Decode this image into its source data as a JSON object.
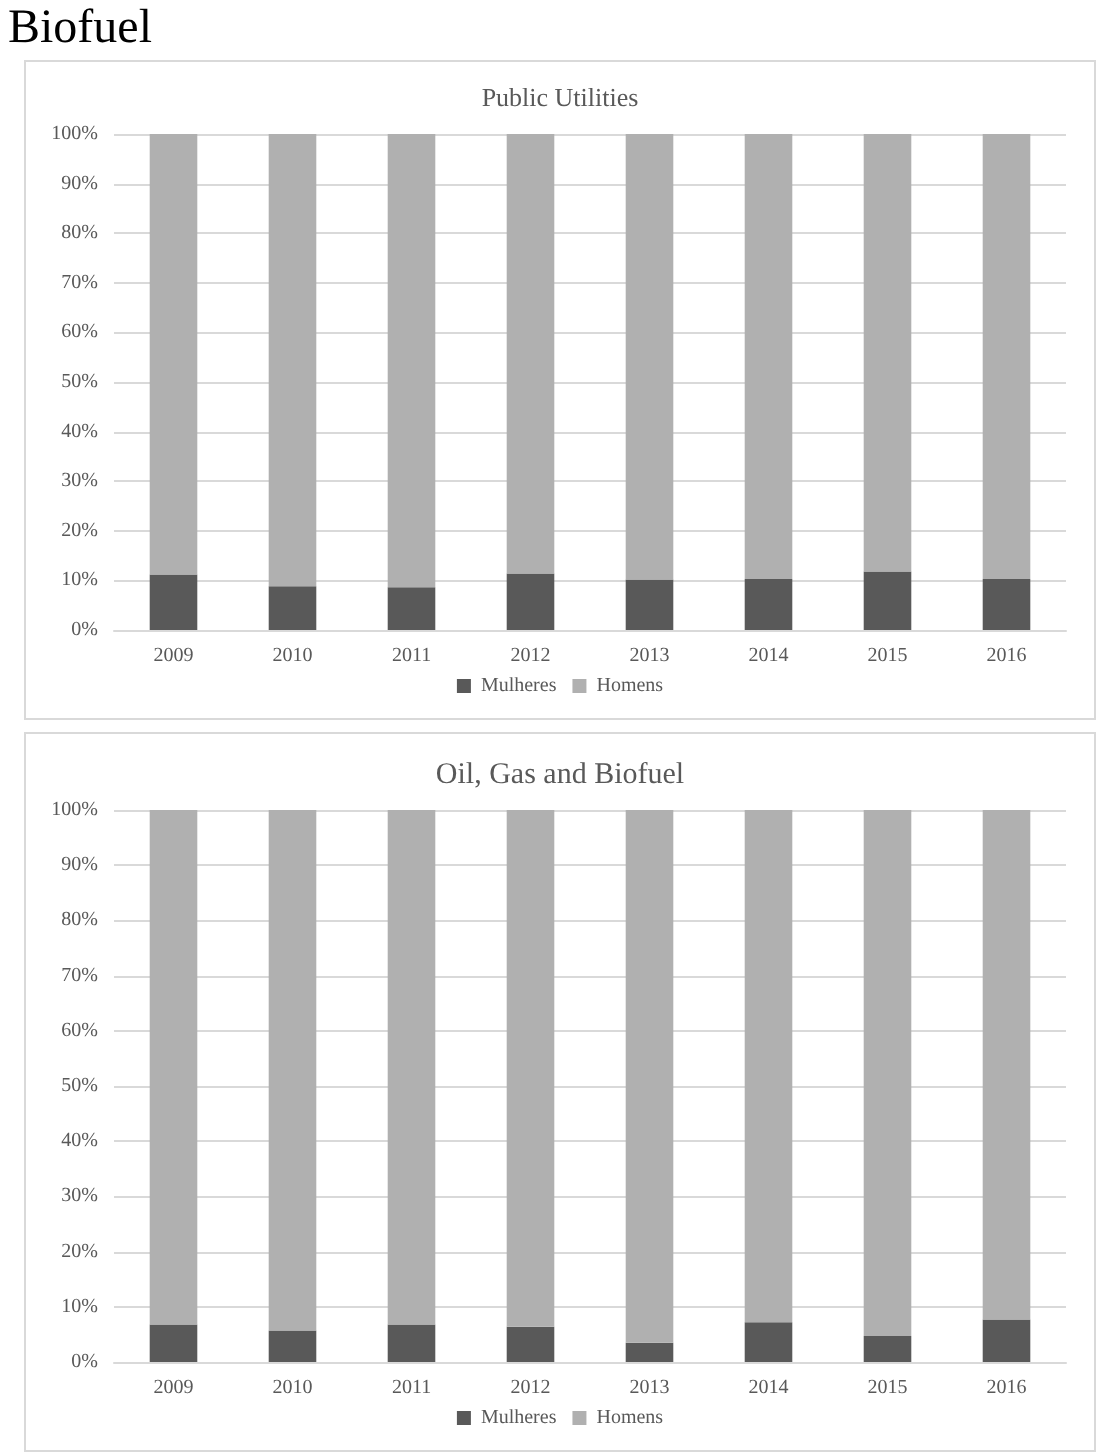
{
  "chart_data": [
    {
      "type": "bar",
      "title": "Public Utilities",
      "annotations": [
        "Biofuel"
      ],
      "categories": [
        "2009",
        "2010",
        "2011",
        "2012",
        "2013",
        "2014",
        "2015",
        "2016"
      ],
      "stacked": true,
      "series": [
        {
          "name": "Mulheres",
          "color": "#595959",
          "values": [
            11.2,
            8.8,
            8.6,
            11.4,
            10.2,
            10.3,
            11.8,
            10.3
          ]
        },
        {
          "name": "Homens",
          "color": "#b0b0b0",
          "values": [
            88.8,
            91.2,
            91.4,
            88.6,
            89.8,
            89.7,
            88.2,
            89.7
          ]
        }
      ],
      "ylim": [
        0,
        100
      ],
      "yticks": [
        {
          "value": 0,
          "label": "0%"
        },
        {
          "value": 10,
          "label": "10%"
        },
        {
          "value": 20,
          "label": "20%"
        },
        {
          "value": 30,
          "label": "30%"
        },
        {
          "value": 40,
          "label": "40%"
        },
        {
          "value": 50,
          "label": "50%"
        },
        {
          "value": 60,
          "label": "60%"
        },
        {
          "value": 70,
          "label": "70%"
        },
        {
          "value": 80,
          "label": "80%"
        },
        {
          "value": 90,
          "label": "90%"
        },
        {
          "value": 100,
          "label": "100%"
        }
      ],
      "grid": "y",
      "legend": "bottom"
    },
    {
      "type": "bar",
      "title": "Oil, Gas and Biofuel",
      "categories": [
        "2009",
        "2010",
        "2011",
        "2012",
        "2013",
        "2014",
        "2015",
        "2016"
      ],
      "stacked": true,
      "series": [
        {
          "name": "Mulheres",
          "color": "#595959",
          "values": [
            6.8,
            5.7,
            6.8,
            6.4,
            3.5,
            7.2,
            4.7,
            7.7
          ]
        },
        {
          "name": "Homens",
          "color": "#b0b0b0",
          "values": [
            93.2,
            94.3,
            93.2,
            93.6,
            96.5,
            92.8,
            95.3,
            92.3
          ]
        }
      ],
      "ylim": [
        0,
        100
      ],
      "yticks": [
        {
          "value": 0,
          "label": "0%"
        },
        {
          "value": 10,
          "label": "10%"
        },
        {
          "value": 20,
          "label": "20%"
        },
        {
          "value": 30,
          "label": "30%"
        },
        {
          "value": 40,
          "label": "40%"
        },
        {
          "value": 50,
          "label": "50%"
        },
        {
          "value": 60,
          "label": "60%"
        },
        {
          "value": 70,
          "label": "70%"
        },
        {
          "value": 80,
          "label": "80%"
        },
        {
          "value": 90,
          "label": "90%"
        },
        {
          "value": 100,
          "label": "100%"
        }
      ],
      "grid": "y",
      "legend": "bottom"
    }
  ]
}
